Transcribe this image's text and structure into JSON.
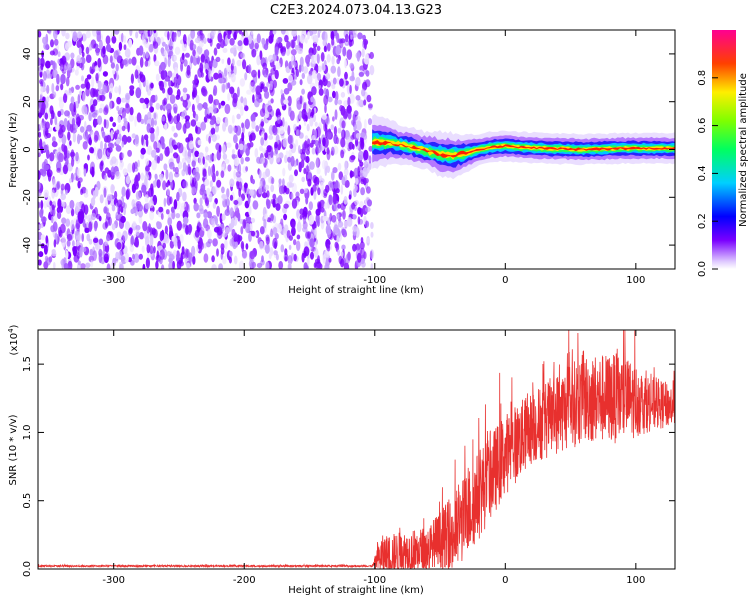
{
  "title": "C2E3.2024.073.04.13.G23",
  "chart_data": [
    {
      "type": "heatmap",
      "xlabel": "Height of straight line (km)",
      "ylabel": "Frequency (Hz)",
      "xlim": [
        -358,
        130
      ],
      "ylim": [
        -50,
        50
      ],
      "x_ticks": [
        -300,
        -200,
        -100,
        0,
        100
      ],
      "y_ticks": [
        -40,
        -20,
        0,
        20,
        40
      ],
      "noise_region": {
        "x": [
          -358,
          -102
        ],
        "y": [
          -50,
          50
        ]
      },
      "signal_track": [
        {
          "x": -102,
          "y": 3.0,
          "w": 3.5
        },
        {
          "x": -90,
          "y": 3.0,
          "w": 3.0
        },
        {
          "x": -80,
          "y": 2.0,
          "w": 2.5
        },
        {
          "x": -70,
          "y": 1.0,
          "w": 2.5
        },
        {
          "x": -60,
          "y": -0.5,
          "w": 2.5
        },
        {
          "x": -50,
          "y": -2.0,
          "w": 3.0
        },
        {
          "x": -40,
          "y": -2.5,
          "w": 3.0
        },
        {
          "x": -30,
          "y": -1.5,
          "w": 2.5
        },
        {
          "x": -20,
          "y": 0.0,
          "w": 2.0
        },
        {
          "x": -10,
          "y": 1.0,
          "w": 2.0
        },
        {
          "x": 0,
          "y": 1.5,
          "w": 2.0
        },
        {
          "x": 10,
          "y": 1.0,
          "w": 2.0
        },
        {
          "x": 30,
          "y": 0.5,
          "w": 2.0
        },
        {
          "x": 60,
          "y": 0.0,
          "w": 2.0
        },
        {
          "x": 90,
          "y": 0.5,
          "w": 2.0
        },
        {
          "x": 130,
          "y": 0.5,
          "w": 2.0
        }
      ],
      "colorbar": {
        "label": "Normalized spectral amplitude",
        "range": [
          0,
          1
        ],
        "ticks": [
          0.0,
          0.2,
          0.4,
          0.6,
          0.8
        ]
      }
    },
    {
      "type": "line",
      "xlabel": "Height of straight line (km)",
      "ylabel": "SNR (10 * v/v)",
      "y_multiplier_label": "(x10",
      "y_multiplier_exp": "4",
      "xlim": [
        -358,
        130
      ],
      "ylim": [
        0,
        1.75
      ],
      "x_ticks": [
        -300,
        -200,
        -100,
        0,
        100
      ],
      "y_ticks": [
        0.0,
        0.5,
        1.0,
        1.5
      ],
      "y_tick_labels": [
        "0.0",
        "0.5",
        "1.0",
        "1.5"
      ],
      "color": "#e8302e",
      "envelope": [
        {
          "x": -358,
          "base": 0.02,
          "amp": 0.01
        },
        {
          "x": -102,
          "base": 0.02,
          "amp": 0.01
        },
        {
          "x": -95,
          "base": 0.05,
          "amp": 0.25
        },
        {
          "x": -60,
          "base": 0.08,
          "amp": 0.3
        },
        {
          "x": -40,
          "base": 0.15,
          "amp": 0.5
        },
        {
          "x": -20,
          "base": 0.45,
          "amp": 0.55
        },
        {
          "x": 0,
          "base": 0.75,
          "amp": 0.5
        },
        {
          "x": 20,
          "base": 0.95,
          "amp": 0.45
        },
        {
          "x": 40,
          "base": 1.05,
          "amp": 0.5
        },
        {
          "x": 60,
          "base": 1.15,
          "amp": 0.55
        },
        {
          "x": 90,
          "base": 1.15,
          "amp": 0.55
        },
        {
          "x": 110,
          "base": 1.15,
          "amp": 0.35
        },
        {
          "x": 130,
          "base": 1.15,
          "amp": 0.25
        }
      ]
    }
  ]
}
